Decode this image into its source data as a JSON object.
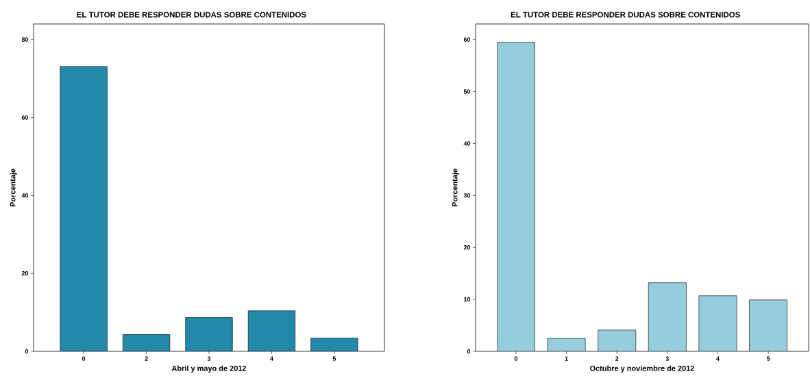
{
  "chart_data": [
    {
      "type": "bar",
      "title": "EL TUTOR DEBE RESPONDER DUDAS SOBRE CONTENIDOS",
      "xlabel": "Abril y mayo de 2012",
      "ylabel": "Porcentaje",
      "categories": [
        "0",
        "2",
        "3",
        "4",
        "5"
      ],
      "values": [
        73.1,
        4.3,
        8.7,
        10.4,
        3.4
      ],
      "color": "#2389ab",
      "ylim": [
        0,
        84
      ],
      "yticks": [
        0,
        20,
        40,
        60,
        80
      ]
    },
    {
      "type": "bar",
      "title": "EL TUTOR DEBE RESPONDER DUDAS SOBRE CONTENIDOS",
      "xlabel": "Octubre y noviembre de 2012",
      "ylabel": "Porcentaje",
      "categories": [
        "0",
        "1",
        "2",
        "3",
        "4",
        "5"
      ],
      "values": [
        59.5,
        2.5,
        4.1,
        13.2,
        10.7,
        9.9
      ],
      "color": "#95cddd",
      "ylim": [
        0,
        63
      ],
      "yticks": [
        0,
        10,
        20,
        30,
        40,
        50,
        60
      ]
    }
  ]
}
